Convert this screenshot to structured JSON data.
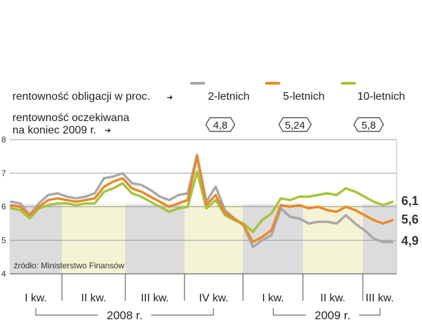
{
  "chart_data": {
    "type": "line",
    "title": "",
    "header_label": "rentowność obligacji w proc.",
    "expected_label_line1": "rentowność oczekiwana",
    "expected_label_line2": "na koniec 2009 r.",
    "arrow_glyph": "➜",
    "source": "źródło: Ministerstwo Finansów",
    "ylim": [
      4,
      8
    ],
    "yticks": [
      "4",
      "5",
      "6",
      "7",
      "8"
    ],
    "grid": true,
    "quarters": [
      "I kw.",
      "II kw.",
      "III kw.",
      "IV kw.",
      "I kw.",
      "II kw.",
      "III kw."
    ],
    "years": [
      "2008 r.",
      "2009 r."
    ],
    "series": [
      {
        "name": "2-letnich",
        "color": "#a8a8a8",
        "expected": "4,8",
        "end_label": "4,9",
        "values": [
          6.15,
          6.1,
          5.75,
          6.1,
          6.35,
          6.4,
          6.3,
          6.25,
          6.3,
          6.4,
          6.85,
          6.9,
          7.0,
          6.7,
          6.65,
          6.5,
          6.3,
          6.2,
          6.35,
          6.4,
          7.55,
          6.15,
          6.6,
          5.9,
          5.65,
          5.45,
          4.8,
          5.0,
          5.15,
          5.95,
          5.7,
          5.65,
          5.5,
          5.55,
          5.55,
          5.5,
          5.75,
          5.5,
          5.3,
          5.05,
          4.95,
          4.95
        ]
      },
      {
        "name": "5-letnich",
        "color": "#e8892a",
        "expected": "5,24",
        "end_label": "5,6",
        "values": [
          6.05,
          6.0,
          5.75,
          6.0,
          6.2,
          6.25,
          6.2,
          6.15,
          6.2,
          6.25,
          6.6,
          6.75,
          6.85,
          6.55,
          6.45,
          6.3,
          6.15,
          6.0,
          6.1,
          6.2,
          7.5,
          6.05,
          6.35,
          5.8,
          5.65,
          5.45,
          4.95,
          5.1,
          5.3,
          6.05,
          6.0,
          6.05,
          5.95,
          6.0,
          5.9,
          5.85,
          6.0,
          5.9,
          5.75,
          5.6,
          5.5,
          5.6
        ]
      },
      {
        "name": "10-letnich",
        "color": "#a5c43c",
        "expected": "5,8",
        "end_label": "6,1",
        "values": [
          5.95,
          5.9,
          5.65,
          5.95,
          6.05,
          6.1,
          6.1,
          6.05,
          6.1,
          6.1,
          6.45,
          6.55,
          6.7,
          6.4,
          6.3,
          6.15,
          6.0,
          5.85,
          5.95,
          6.0,
          7.05,
          5.95,
          6.2,
          5.75,
          5.6,
          5.5,
          5.25,
          5.6,
          5.8,
          6.25,
          6.2,
          6.3,
          6.3,
          6.35,
          6.4,
          6.35,
          6.55,
          6.45,
          6.3,
          6.15,
          6.05,
          6.15
        ]
      }
    ]
  }
}
